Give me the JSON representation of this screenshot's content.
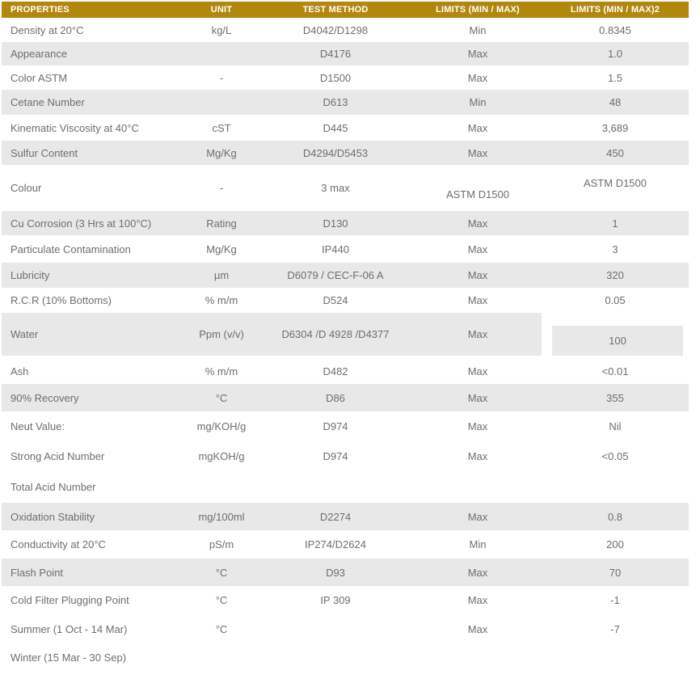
{
  "table": {
    "colors": {
      "header_bg": "#B3860D",
      "header_text": "#FFFFFF",
      "stripe_bg": "#E8E8E8",
      "body_text": "#6E6E6E"
    },
    "columns": [
      {
        "label": "PROPERTIES"
      },
      {
        "label": "UNIT"
      },
      {
        "label": "TEST METHOD"
      },
      {
        "label": "LIMITS (MIN / MAX)"
      },
      {
        "label": "LIMITS (MIN / MAX)2"
      }
    ],
    "rows": [
      {
        "property": "Density at 20°C",
        "unit": "kg/L",
        "method": "D4042/D1298",
        "limit": "Min",
        "value": "0.8345",
        "shaded": false
      },
      {
        "property": "Appearance",
        "unit": "",
        "method": "D4176",
        "limit": "Max",
        "value": "1.0",
        "shaded": true
      },
      {
        "property": "Color ASTM",
        "unit": "-",
        "method": "D1500",
        "limit": "Max",
        "value": "1.5",
        "shaded": false
      },
      {
        "property": "Cetane Number",
        "unit": "",
        "method": "D613",
        "limit": "Min",
        "value": "48",
        "shaded": true
      },
      {
        "property": "Kinematic Viscosity at 40°C",
        "unit": "cST",
        "method": "D445",
        "limit": "Max",
        "value": "3,689",
        "shaded": false
      },
      {
        "property": "Sulfur Content",
        "unit": "Mg/Kg",
        "method": "D4294/D5453",
        "limit": "Max",
        "value": "450",
        "shaded": true
      },
      {
        "property": "Colour",
        "unit": "-",
        "method": "3 max",
        "limit": "ASTM D1500",
        "value": "ASTM D1500",
        "shaded": false,
        "special": "colour"
      },
      {
        "property": "Cu Corrosion (3 Hrs at 100°C)",
        "unit": "Rating",
        "method": "D130",
        "limit": "Max",
        "value": "1",
        "shaded": true
      },
      {
        "property": "Particulate Contamination",
        "unit": "Mg/Kg",
        "method": "IP440",
        "limit": "Max",
        "value": "3",
        "shaded": false
      },
      {
        "property": "Lubricity",
        "unit": "µm",
        "method": "D6079 / CEC-F-06 A",
        "limit": "Max",
        "value": "320",
        "shaded": true
      },
      {
        "property": "R.C.R (10% Bottoms)",
        "unit": "% m/m",
        "method": "D524",
        "limit": "Max",
        "value": "0.05",
        "shaded": false
      },
      {
        "property": "Water",
        "unit": "Ppm (v/v)",
        "method": "D6304 /D 4928 /D4377",
        "limit": "Max",
        "value": "100",
        "shaded": true,
        "special": "water"
      },
      {
        "property": "Ash",
        "unit": "% m/m",
        "method": "D482",
        "limit": "Max",
        "value": "<0.01",
        "shaded": false
      },
      {
        "property": "90% Recovery",
        "unit": "°C",
        "method": "D86",
        "limit": "Max",
        "value": "355",
        "shaded": true
      },
      {
        "property": "Neut Value:",
        "unit": "mg/KOH/g",
        "method": "D974",
        "limit": "Max",
        "value": "Nil",
        "shaded": false
      },
      {
        "property": "Strong Acid Number",
        "unit": "mgKOH/g",
        "method": "D974",
        "limit": "Max",
        "value": "<0.05",
        "shaded": false
      },
      {
        "property": "Total Acid Number",
        "unit": "",
        "method": "",
        "limit": "",
        "value": "",
        "shaded": false
      },
      {
        "property": "Oxidation Stability",
        "unit": "mg/100ml",
        "method": "D2274",
        "limit": "Max",
        "value": "0.8",
        "shaded": true
      },
      {
        "property": "Conductivity at 20°C",
        "unit": "pS/m",
        "method": "IP274/D2624",
        "limit": "Min",
        "value": "200",
        "shaded": false
      },
      {
        "property": "Flash Point",
        "unit": "°C",
        "method": "D93",
        "limit": "Max",
        "value": "70",
        "shaded": true
      },
      {
        "property": "Cold Filter Plugging Point",
        "unit": "°C",
        "method": "IP 309",
        "limit": "Max",
        "value": "-1",
        "shaded": false
      },
      {
        "property": "Summer (1 Oct - 14 Mar)",
        "unit": "°C",
        "method": "",
        "limit": "Max",
        "value": "-7",
        "shaded": false
      },
      {
        "property": "Winter (15 Mar - 30 Sep)",
        "unit": "",
        "method": "",
        "limit": "",
        "value": "",
        "shaded": false
      }
    ]
  }
}
